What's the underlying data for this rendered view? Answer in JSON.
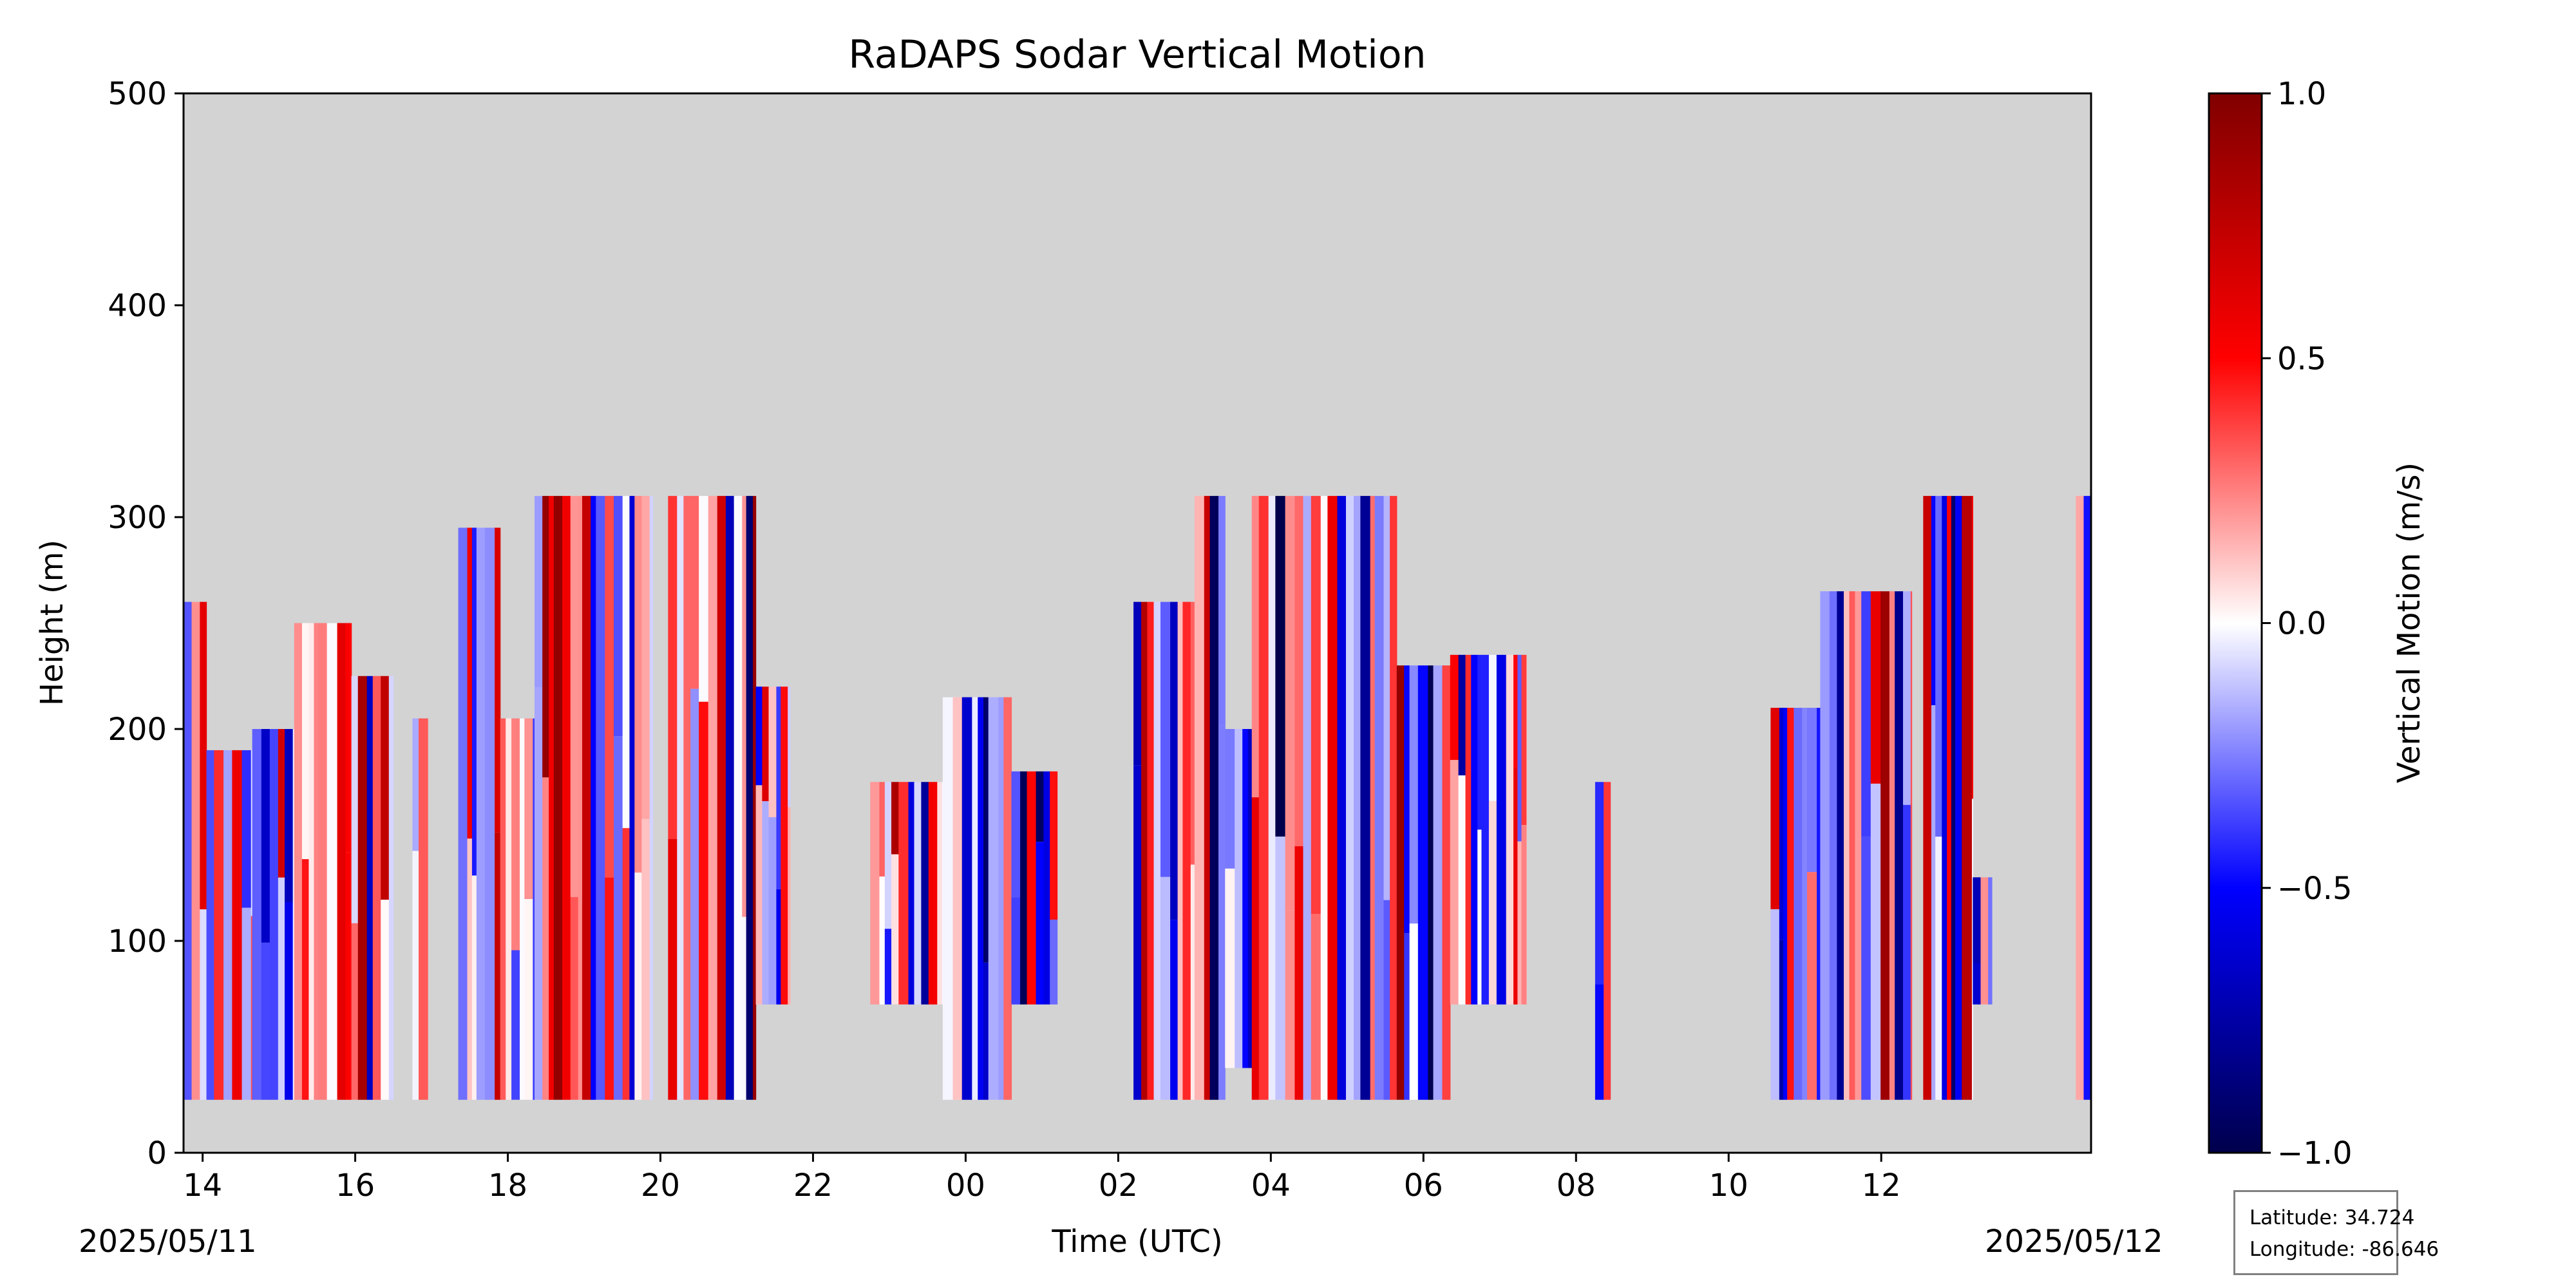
{
  "chart_data": {
    "type": "heatmap",
    "title": "RaDAPS Sodar Vertical Motion",
    "xlabel": "Time (UTC)",
    "ylabel": "Height (m)",
    "x_ticks": [
      "14",
      "16",
      "18",
      "20",
      "22",
      "00",
      "02",
      "04",
      "06",
      "08",
      "10",
      "12"
    ],
    "x_tick_hours": [
      14,
      16,
      18,
      20,
      22,
      24,
      26,
      28,
      30,
      32,
      34,
      36
    ],
    "xlim_hours": [
      13.75,
      38.75
    ],
    "date_left": "2025/05/11",
    "date_right": "2025/05/12",
    "y_ticks": [
      0,
      100,
      200,
      300,
      400,
      500
    ],
    "ylim": [
      0,
      500
    ],
    "colorbar": {
      "label": "Vertical Motion (m/s)",
      "range": [
        -1.0,
        1.0
      ],
      "ticks": [
        1.0,
        0.5,
        0.0,
        -0.5,
        -1.0
      ],
      "tick_labels": [
        "1.0",
        "0.5",
        "0.0",
        "−0.5",
        "−1.0"
      ],
      "colormap": "seismic"
    },
    "missing_color": "#d3d3d3",
    "data_segments": [
      {
        "start_hour": 13.75,
        "end_hour": 14.05,
        "top_m": 260,
        "bottom_m": 25
      },
      {
        "start_hour": 14.05,
        "end_hour": 14.65,
        "top_m": 190,
        "bottom_m": 25
      },
      {
        "start_hour": 14.65,
        "end_hour": 15.2,
        "top_m": 200,
        "bottom_m": 25
      },
      {
        "start_hour": 15.2,
        "end_hour": 15.95,
        "top_m": 250,
        "bottom_m": 25
      },
      {
        "start_hour": 15.95,
        "end_hour": 16.5,
        "top_m": 225,
        "bottom_m": 25
      },
      {
        "start_hour": 16.75,
        "end_hour": 16.95,
        "top_m": 205,
        "bottom_m": 25
      },
      {
        "start_hour": 17.35,
        "end_hour": 17.9,
        "top_m": 295,
        "bottom_m": 25
      },
      {
        "start_hour": 17.9,
        "end_hour": 18.35,
        "top_m": 205,
        "bottom_m": 25
      },
      {
        "start_hour": 18.35,
        "end_hour": 19.9,
        "top_m": 310,
        "bottom_m": 25
      },
      {
        "start_hour": 20.1,
        "end_hour": 21.25,
        "top_m": 310,
        "bottom_m": 25
      },
      {
        "start_hour": 21.25,
        "end_hour": 21.7,
        "top_m": 220,
        "bottom_m": 70
      },
      {
        "start_hour": 22.75,
        "end_hour": 23.7,
        "top_m": 175,
        "bottom_m": 70
      },
      {
        "start_hour": 23.7,
        "end_hour": 24.6,
        "top_m": 215,
        "bottom_m": 25
      },
      {
        "start_hour": 24.6,
        "end_hour": 25.2,
        "top_m": 180,
        "bottom_m": 70
      },
      {
        "start_hour": 26.2,
        "end_hour": 27.0,
        "top_m": 260,
        "bottom_m": 25
      },
      {
        "start_hour": 27.0,
        "end_hour": 27.4,
        "top_m": 310,
        "bottom_m": 25
      },
      {
        "start_hour": 27.4,
        "end_hour": 27.75,
        "top_m": 200,
        "bottom_m": 40
      },
      {
        "start_hour": 27.75,
        "end_hour": 29.65,
        "top_m": 310,
        "bottom_m": 25
      },
      {
        "start_hour": 29.65,
        "end_hour": 30.35,
        "top_m": 230,
        "bottom_m": 25
      },
      {
        "start_hour": 30.35,
        "end_hour": 31.35,
        "top_m": 235,
        "bottom_m": 70
      },
      {
        "start_hour": 32.25,
        "end_hour": 32.45,
        "top_m": 175,
        "bottom_m": 25
      },
      {
        "start_hour": 34.55,
        "end_hour": 35.2,
        "top_m": 210,
        "bottom_m": 25
      },
      {
        "start_hour": 35.2,
        "end_hour": 36.4,
        "top_m": 265,
        "bottom_m": 25
      },
      {
        "start_hour": 36.55,
        "end_hour": 37.2,
        "top_m": 310,
        "bottom_m": 25
      },
      {
        "start_hour": 37.2,
        "end_hour": 37.45,
        "top_m": 130,
        "bottom_m": 70
      },
      {
        "start_hour": 38.55,
        "end_hour": 38.75,
        "top_m": 310,
        "bottom_m": 25
      }
    ]
  },
  "info_box": {
    "latitude": "Latitude: 34.724",
    "longitude": "Longitude: -86.646"
  }
}
